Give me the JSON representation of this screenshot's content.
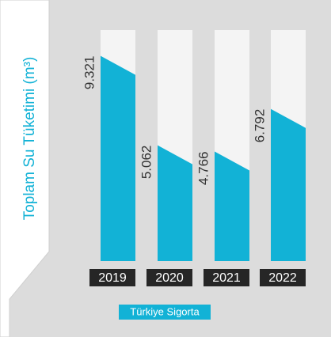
{
  "chart_data": {
    "type": "bar",
    "title": "Toplam Su Tüketimi (m³)",
    "categories": [
      "2019",
      "2020",
      "2021",
      "2022"
    ],
    "series": [
      {
        "name": "Türkiye Sigorta",
        "color": "#12b2d6",
        "values": [
          9321,
          5062,
          4766,
          6792
        ],
        "value_labels": [
          "9.321",
          "5.062",
          "4.766",
          "6.792"
        ]
      }
    ],
    "ylim": [
      0,
      11000
    ]
  }
}
